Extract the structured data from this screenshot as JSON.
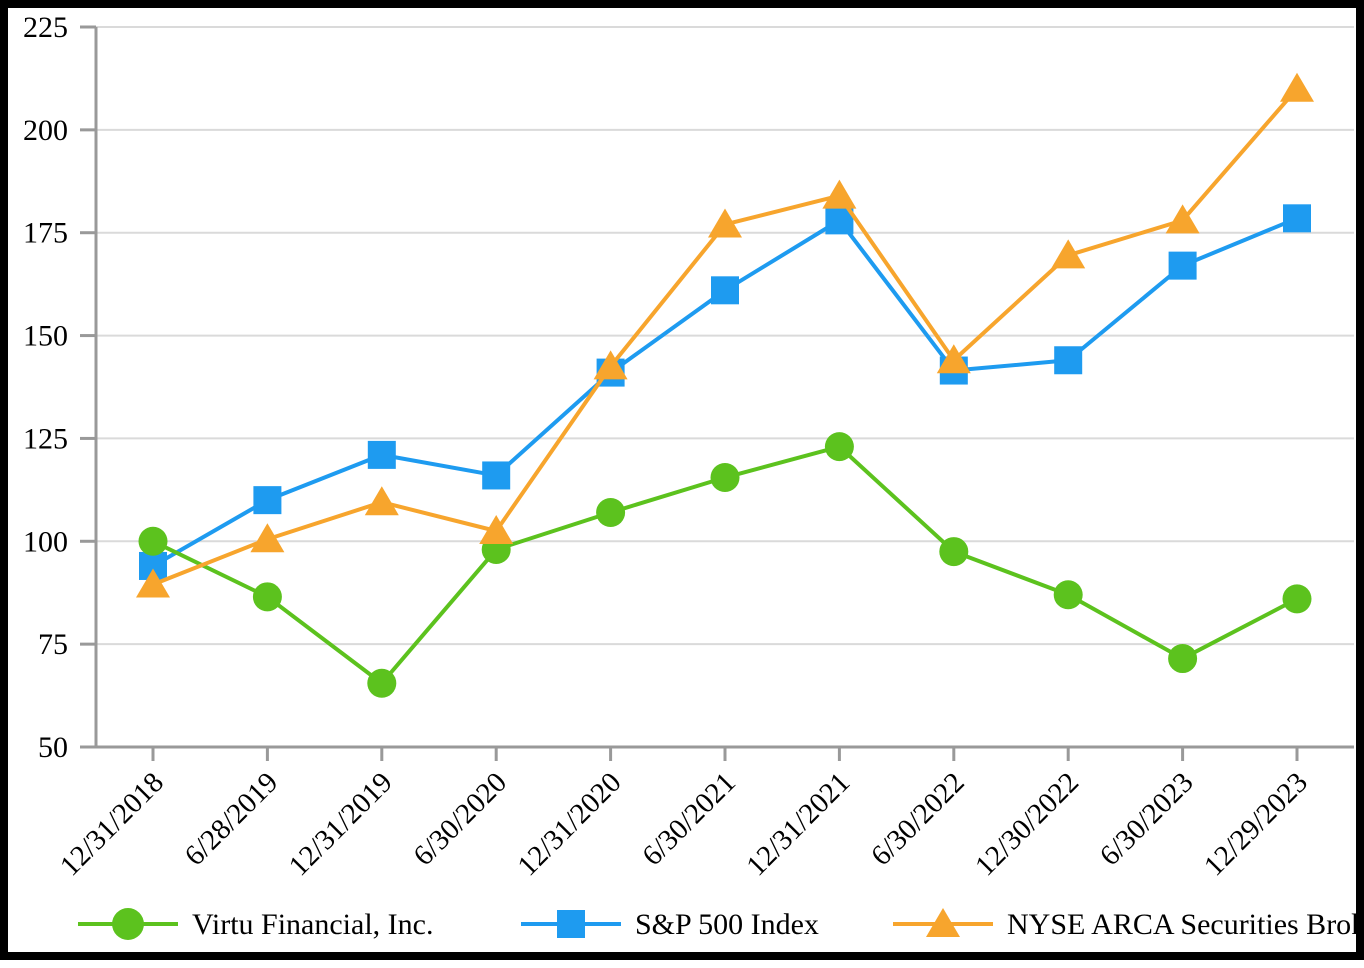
{
  "chart_data": {
    "type": "line",
    "title": "",
    "x_labels": [
      "12/31/2018",
      "6/28/2019",
      "12/31/2019",
      "6/30/2020",
      "12/31/2020",
      "6/30/2021",
      "12/31/2021",
      "6/30/2022",
      "12/30/2022",
      "6/30/2023",
      "12/29/2023"
    ],
    "series": [
      {
        "name": "Virtu Financial, Inc.",
        "marker": "circle",
        "color": "#5CC21E",
        "values": [
          100,
          86.5,
          65.5,
          98,
          107,
          115.5,
          123,
          97.5,
          87,
          71.5,
          86
        ]
      },
      {
        "name": "S&P 500 Index",
        "marker": "square",
        "color": "#1E9BF0",
        "values": [
          94,
          110,
          121,
          116,
          141,
          161,
          178,
          141.5,
          144,
          167,
          178.5
        ]
      },
      {
        "name": "NYSE ARCA Securities Broker/Dealer Index",
        "marker": "triangle",
        "color": "#F7A52D",
        "values": [
          89.5,
          100.5,
          109.5,
          102.5,
          142.5,
          177,
          184,
          144,
          169.5,
          178,
          210
        ]
      }
    ],
    "y_ticks": [
      50,
      75,
      100,
      125,
      150,
      175,
      200,
      225
    ],
    "ylim": [
      50,
      225
    ],
    "xlabel": "",
    "ylabel": "",
    "grid": true,
    "legend_position": "bottom"
  },
  "colors": {
    "background": "#FFFFFF",
    "frame": "#000000",
    "grid": "#DADADA",
    "axis": "#999999",
    "text": "#000000",
    "virtu": "#5CC21E",
    "sp500": "#1E9BF0",
    "arca": "#F7A52D"
  }
}
